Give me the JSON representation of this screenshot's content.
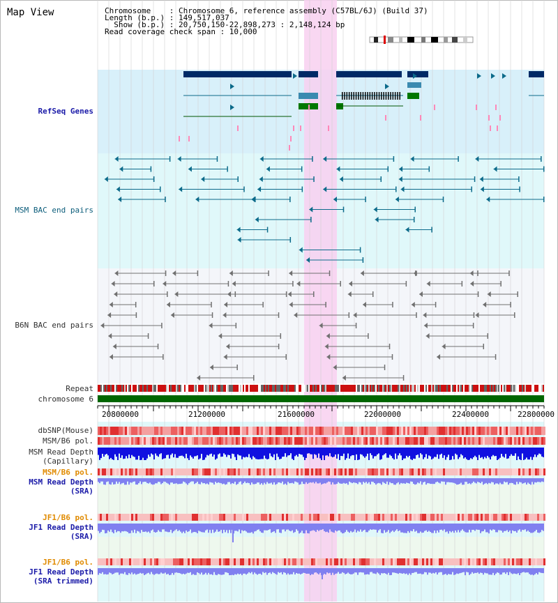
{
  "title": "Map View",
  "info": {
    "chromosome_line": "Chromosome    : Chromosome 6, reference assembly (C57BL/6J) (Build 37)",
    "length_line": "Length (b.p.) : 149,517,037",
    "show_line": "  Show (b.p.) : 20,750,150-22,898,273 : 2,148,124 bp",
    "coverage_line": "Read coverage check span : 10,000"
  },
  "tracks": {
    "refseq": "RefSeq Genes",
    "msm_bac": "MSM BAC end pairs",
    "b6n_bac": "B6N BAC end pairs",
    "repeat": "Repeat",
    "chromosome": "chromosome 6",
    "dbsnp": "dbSNP(Mouse)",
    "msm_b6_pol_1": "MSM/B6 pol.",
    "msm_read_depth_cap_1": "MSM Read Depth",
    "msm_read_depth_cap_2": "(Capillary)",
    "msm_b6_pol_2": "MSM/B6 pol.",
    "msm_read_depth_sra_1": "MSM Read Depth",
    "msm_read_depth_sra_2": "(SRA)",
    "jf1_b6_pol_1": "JF1/B6 pol.",
    "jf1_read_depth_sra_1": "JF1 Read Depth",
    "jf1_read_depth_sra_2": "(SRA)",
    "jf1_b6_pol_2": "JF1/B6 pol.",
    "jf1_read_depth_trim_1": "JF1 Read Depth",
    "jf1_read_depth_trim_2": "(SRA trimmed)"
  },
  "axis": {
    "ticks": [
      "20800000",
      "21200000",
      "21600000",
      "22000000",
      "22400000",
      "22800000"
    ]
  },
  "colors": {
    "refseq_bg": "#d8f0fa",
    "msm_bg": "#e0f8fa",
    "b6n_bg": "#f4f6fa",
    "highlight": "#f8d0f0",
    "chromosome_bar": "#006600",
    "snp_red": "#e83030",
    "depth_blue": "#1010e0",
    "depth_light": "#8080f0",
    "gene_navy": "#002a66",
    "gene_mid": "#3a8ab0",
    "gene_green": "#007700",
    "pink": "#ff88b8",
    "teal": "#0b6a8a",
    "gray": "#707070"
  }
}
